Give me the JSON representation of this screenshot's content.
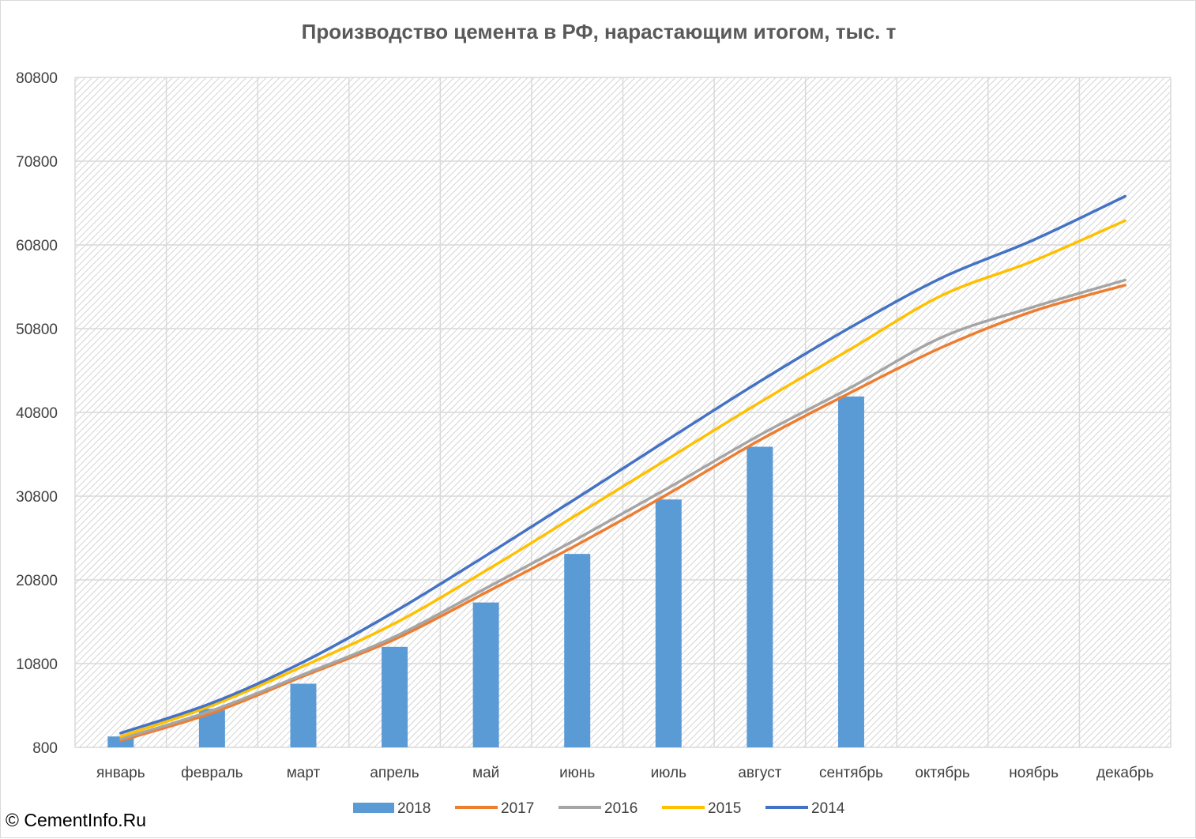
{
  "chart_data": {
    "type": "bar+line",
    "title": "Производство цемента в РФ, нарастающим итогом, тыс. т",
    "xlabel": "",
    "ylabel": "",
    "categories": [
      "январь",
      "февраль",
      "март",
      "апрель",
      "май",
      "июнь",
      "июль",
      "август",
      "сентябрь",
      "октябрь",
      "ноябрь",
      "декабрь"
    ],
    "ylim": [
      800,
      80800
    ],
    "yticks": [
      800,
      10800,
      20800,
      30800,
      40800,
      50800,
      60800,
      70800,
      80800
    ],
    "grid": true,
    "legend_position": "bottom",
    "bar_series": {
      "name": "2018",
      "color": "#5b9bd5",
      "values": [
        2100,
        5400,
        8400,
        12800,
        18100,
        23900,
        30400,
        36700,
        42700,
        null,
        null,
        null
      ]
    },
    "series": [
      {
        "name": "2017",
        "color": "#ed7d31",
        "values": [
          1600,
          4900,
          9300,
          13700,
          19300,
          25000,
          31100,
          37500,
          43200,
          48600,
          52900,
          56000
        ]
      },
      {
        "name": "2016",
        "color": "#a5a5a5",
        "values": [
          1800,
          5200,
          9500,
          14000,
          19800,
          25700,
          31800,
          38100,
          43800,
          49800,
          53400,
          56600
        ]
      },
      {
        "name": "2015",
        "color": "#ffc000",
        "values": [
          2100,
          5800,
          10500,
          15600,
          21900,
          28600,
          35300,
          42000,
          48400,
          54800,
          58900,
          63700
        ]
      },
      {
        "name": "2014",
        "color": "#4472c4",
        "values": [
          2500,
          6100,
          11000,
          17000,
          23700,
          30600,
          37600,
          44500,
          51000,
          56900,
          61400,
          66600
        ]
      }
    ]
  },
  "copyright": "© CementInfo.Ru"
}
